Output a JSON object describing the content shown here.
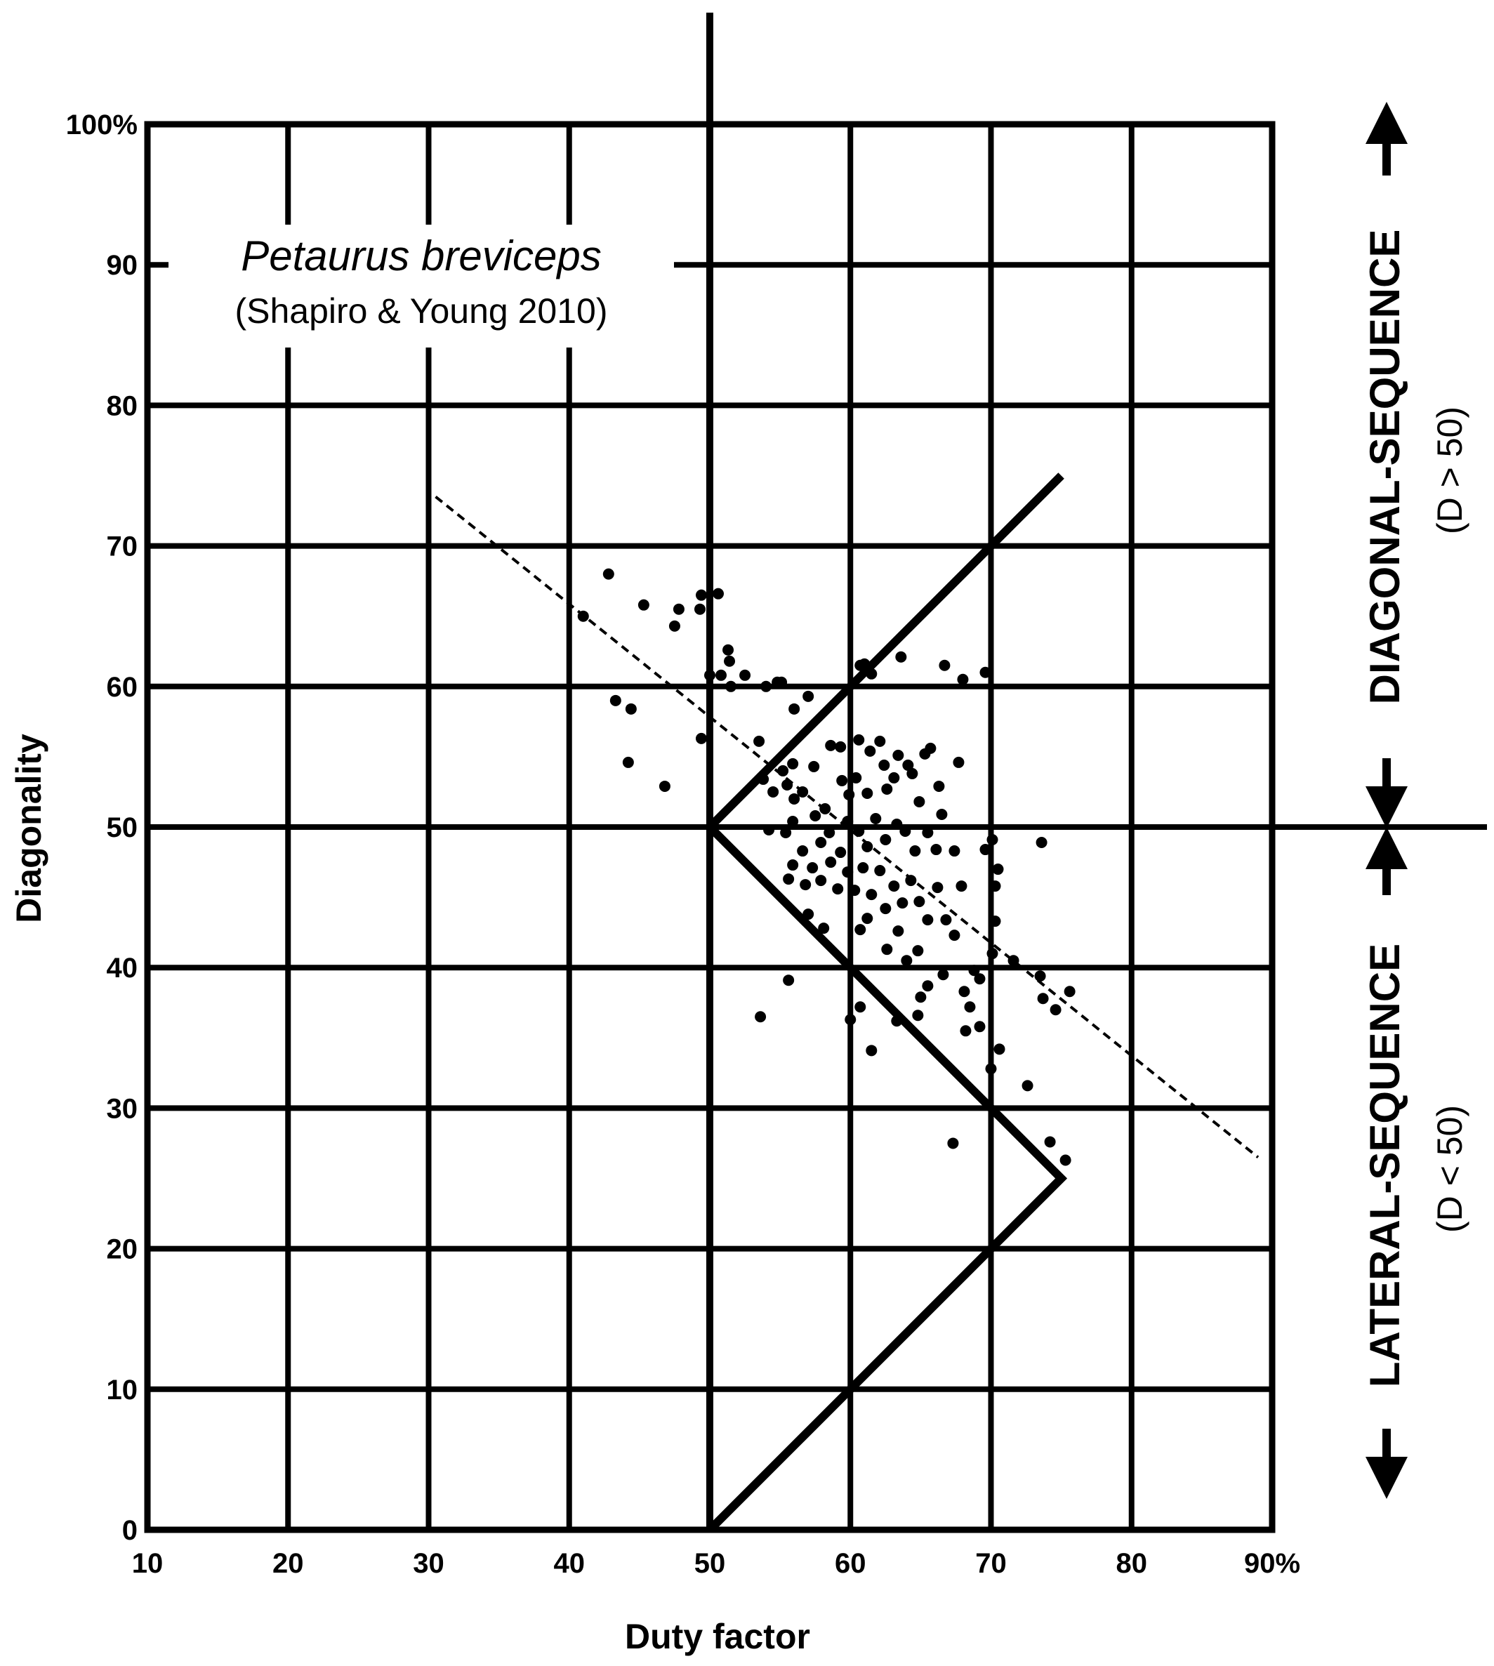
{
  "chart_data": {
    "type": "scatter",
    "title": "Petaurus breviceps",
    "subtitle": "(Shapiro & Young 2010)",
    "xlabel": "Duty factor",
    "ylabel": "Diagonality",
    "xlim": [
      10,
      90
    ],
    "ylim": [
      0,
      100
    ],
    "grid": true,
    "x_ticks": [
      10,
      20,
      30,
      40,
      50,
      60,
      70,
      80,
      90
    ],
    "x_tick_labels": [
      "10",
      "20",
      "30",
      "40",
      "50",
      "60",
      "70",
      "80",
      "90%"
    ],
    "y_ticks": [
      0,
      10,
      20,
      30,
      40,
      50,
      60,
      70,
      80,
      90,
      100
    ],
    "y_tick_labels": [
      "0",
      "10",
      "20",
      "30",
      "40",
      "50",
      "60",
      "70",
      "80",
      "90",
      "100%"
    ],
    "right_labels": {
      "upper_main": "DIAGONAL-SEQUENCE",
      "upper_sub": "(D > 50)",
      "lower_main": "LATERAL-SEQUENCE",
      "lower_sub": "(D < 50)"
    },
    "zigzag_boundary": [
      [
        75,
        75
      ],
      [
        50,
        50
      ],
      [
        75,
        25
      ],
      [
        50,
        0
      ]
    ],
    "trend_line": [
      [
        30.5,
        73.5
      ],
      [
        89,
        26.5
      ]
    ],
    "series": [
      {
        "points": [
          [
            42.8,
            68
          ],
          [
            45.3,
            65.8
          ],
          [
            47.5,
            64.3
          ],
          [
            47.8,
            65.5
          ],
          [
            49.3,
            65.5
          ],
          [
            49.4,
            66.5
          ],
          [
            50.6,
            66.6
          ],
          [
            41,
            65
          ],
          [
            50,
            60.8
          ],
          [
            50.8,
            60.8
          ],
          [
            51.3,
            62.6
          ],
          [
            51.4,
            61.8
          ],
          [
            51.5,
            60
          ],
          [
            52.5,
            60.8
          ],
          [
            54,
            60
          ],
          [
            54.8,
            60.3
          ],
          [
            55.1,
            60.3
          ],
          [
            56,
            58.4
          ],
          [
            57,
            59.3
          ],
          [
            43.3,
            59
          ],
          [
            44.4,
            58.4
          ],
          [
            44.2,
            54.6
          ],
          [
            46.8,
            52.9
          ],
          [
            49.4,
            56.3
          ],
          [
            53.5,
            56.1
          ],
          [
            55.2,
            54
          ],
          [
            55.9,
            54.5
          ],
          [
            60.7,
            61.5
          ],
          [
            61,
            61.6
          ],
          [
            61.5,
            60.9
          ],
          [
            63.6,
            62.1
          ],
          [
            66.7,
            61.5
          ],
          [
            68,
            60.5
          ],
          [
            69.6,
            61
          ],
          [
            53.8,
            53.4
          ],
          [
            54.5,
            52.5
          ],
          [
            55.5,
            53
          ],
          [
            56,
            52
          ],
          [
            56.6,
            52.5
          ],
          [
            57.4,
            54.3
          ],
          [
            58.2,
            51.3
          ],
          [
            58.6,
            55.8
          ],
          [
            59.3,
            55.7
          ],
          [
            59.4,
            53.3
          ],
          [
            59.9,
            52.3
          ],
          [
            60.4,
            53.5
          ],
          [
            60.6,
            56.2
          ],
          [
            61.2,
            52.4
          ],
          [
            61.4,
            55.4
          ],
          [
            62.1,
            56.1
          ],
          [
            62.4,
            54.4
          ],
          [
            62.6,
            52.7
          ],
          [
            63.1,
            53.5
          ],
          [
            63.4,
            55.1
          ],
          [
            64.1,
            54.4
          ],
          [
            64.4,
            53.8
          ],
          [
            65.3,
            55.2
          ],
          [
            65.7,
            55.6
          ],
          [
            66.3,
            52.9
          ],
          [
            67.7,
            54.6
          ],
          [
            64.9,
            51.8
          ],
          [
            66.5,
            50.9
          ],
          [
            54.2,
            49.8
          ],
          [
            55.4,
            49.6
          ],
          [
            55.9,
            50.4
          ],
          [
            56.6,
            48.3
          ],
          [
            57.5,
            50.8
          ],
          [
            57.9,
            48.9
          ],
          [
            58.5,
            49.6
          ],
          [
            59.3,
            48.2
          ],
          [
            59.8,
            50.4
          ],
          [
            60.6,
            49.7
          ],
          [
            61.2,
            48.6
          ],
          [
            61.8,
            50.6
          ],
          [
            62.5,
            49.1
          ],
          [
            63.3,
            50.2
          ],
          [
            63.9,
            49.7
          ],
          [
            64.6,
            48.3
          ],
          [
            65.5,
            49.6
          ],
          [
            66.1,
            48.4
          ],
          [
            67.4,
            48.3
          ],
          [
            69.6,
            48.4
          ],
          [
            70.1,
            49.1
          ],
          [
            73.6,
            48.9
          ],
          [
            55.6,
            46.3
          ],
          [
            55.9,
            47.3
          ],
          [
            56.8,
            45.9
          ],
          [
            57.3,
            47.1
          ],
          [
            57.9,
            46.2
          ],
          [
            58.6,
            47.5
          ],
          [
            59.1,
            45.6
          ],
          [
            59.8,
            46.8
          ],
          [
            60.3,
            45.5
          ],
          [
            60.9,
            47.1
          ],
          [
            61.5,
            45.2
          ],
          [
            62.1,
            46.9
          ],
          [
            62.5,
            44.2
          ],
          [
            63.1,
            45.8
          ],
          [
            63.7,
            44.6
          ],
          [
            64.3,
            46.2
          ],
          [
            64.9,
            44.7
          ],
          [
            65.5,
            43.4
          ],
          [
            66.2,
            45.7
          ],
          [
            66.8,
            43.4
          ],
          [
            67.9,
            45.8
          ],
          [
            70.3,
            45.8
          ],
          [
            70.5,
            47
          ],
          [
            57,
            43.8
          ],
          [
            58.1,
            42.8
          ],
          [
            60.7,
            42.7
          ],
          [
            61.2,
            43.5
          ],
          [
            62.6,
            41.3
          ],
          [
            63.4,
            42.6
          ],
          [
            64,
            40.5
          ],
          [
            64.8,
            41.2
          ],
          [
            66.6,
            39.5
          ],
          [
            67.4,
            42.3
          ],
          [
            68.8,
            39.8
          ],
          [
            69.2,
            39.2
          ],
          [
            70.3,
            43.3
          ],
          [
            70.1,
            41
          ],
          [
            71.6,
            40.5
          ],
          [
            73.5,
            39.4
          ],
          [
            75.6,
            38.3
          ],
          [
            73.7,
            37.8
          ],
          [
            74.6,
            37
          ],
          [
            55.6,
            39.1
          ],
          [
            53.6,
            36.5
          ],
          [
            60,
            36.3
          ],
          [
            60.7,
            37.2
          ],
          [
            61.5,
            34.1
          ],
          [
            63.3,
            36.2
          ],
          [
            64.8,
            36.6
          ],
          [
            65,
            37.9
          ],
          [
            65.5,
            38.7
          ],
          [
            68.2,
            35.5
          ],
          [
            68.1,
            38.3
          ],
          [
            68.5,
            37.2
          ],
          [
            69.2,
            35.8
          ],
          [
            70,
            32.8
          ],
          [
            70.6,
            34.2
          ],
          [
            72.6,
            31.6
          ],
          [
            67.3,
            27.5
          ],
          [
            74.2,
            27.6
          ],
          [
            75.3,
            26.3
          ]
        ]
      }
    ]
  }
}
